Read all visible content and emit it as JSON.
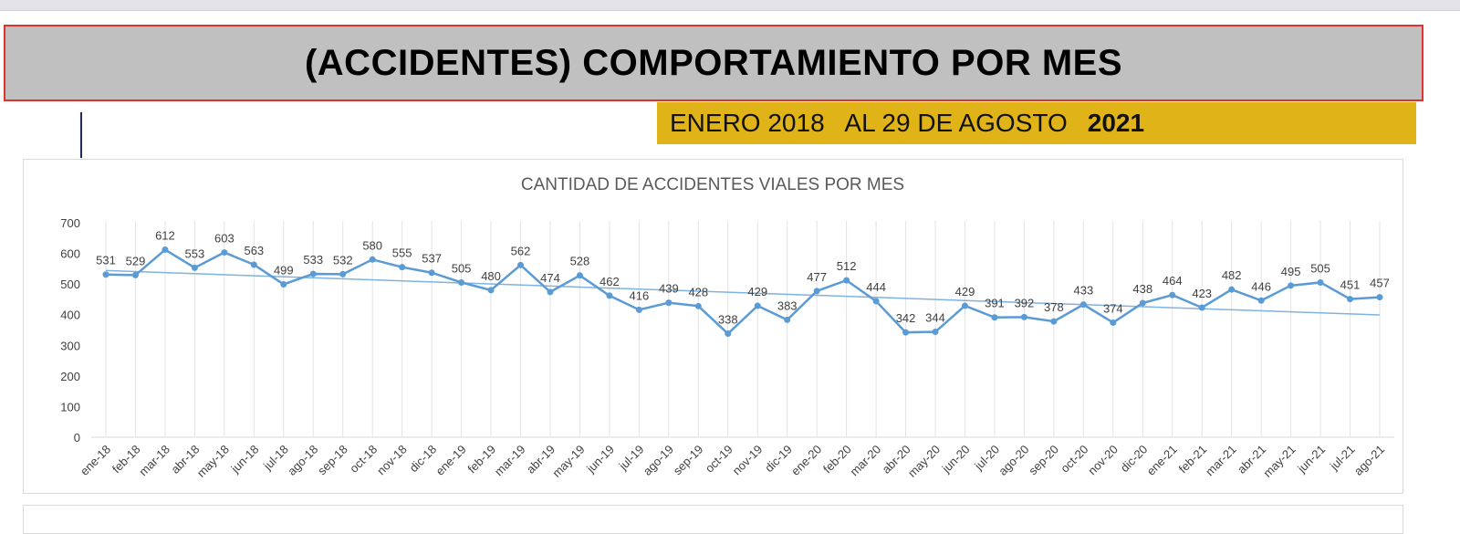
{
  "header": {
    "title": "(ACCIDENTES) COMPORTAMIENTO POR MES",
    "date_range_prefix": "ENERO 2018   AL 29 DE AGOSTO",
    "date_range_year": "2021"
  },
  "colors": {
    "title_bg": "#c0c0c0",
    "title_border": "#e0312b",
    "date_bg": "#e0b419",
    "series": "#5b9bd5",
    "trend": "#7fb2e0"
  },
  "chart_data": {
    "type": "line",
    "title": "CANTIDAD DE ACCIDENTES VIALES POR MES",
    "xlabel": "",
    "ylabel": "",
    "ylim": [
      0,
      700
    ],
    "yticks": [
      0,
      100,
      200,
      300,
      400,
      500,
      600,
      700
    ],
    "grid": "vertical",
    "trendline": "linear",
    "categories": [
      "ene-18",
      "feb-18",
      "mar-18",
      "abr-18",
      "may-18",
      "jun-18",
      "jul-18",
      "ago-18",
      "sep-18",
      "oct-18",
      "nov-18",
      "dic-18",
      "ene-19",
      "feb-19",
      "mar-19",
      "abr-19",
      "may-19",
      "jun-19",
      "jul-19",
      "ago-19",
      "sep-19",
      "oct-19",
      "nov-19",
      "dic-19",
      "ene-20",
      "feb-20",
      "mar-20",
      "abr-20",
      "may-20",
      "jun-20",
      "jul-20",
      "ago-20",
      "sep-20",
      "oct-20",
      "nov-20",
      "dic-20",
      "ene-21",
      "feb-21",
      "mar-21",
      "abr-21",
      "may-21",
      "jun-21",
      "jul-21",
      "ago-21"
    ],
    "values": [
      531,
      529,
      612,
      553,
      603,
      563,
      499,
      533,
      532,
      580,
      555,
      537,
      505,
      480,
      562,
      474,
      528,
      462,
      416,
      439,
      428,
      338,
      429,
      383,
      477,
      512,
      444,
      342,
      344,
      429,
      391,
      392,
      378,
      433,
      374,
      438,
      464,
      423,
      482,
      446,
      495,
      505,
      451,
      457
    ]
  }
}
